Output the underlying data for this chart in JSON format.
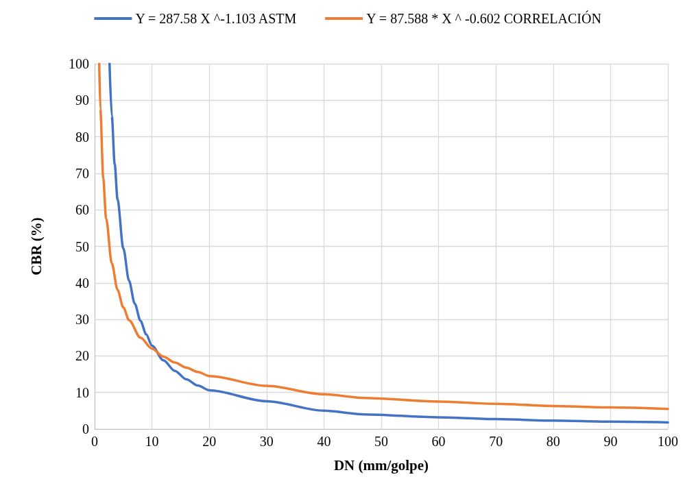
{
  "chart_data": {
    "type": "line",
    "xlabel": "DN (mm/golpe)",
    "ylabel": "CBR (%)",
    "xlim": [
      0,
      100
    ],
    "xticks": [
      0,
      10,
      20,
      30,
      40,
      50,
      60,
      70,
      80,
      90,
      100
    ],
    "ylim": [
      0,
      100
    ],
    "yticks": [
      0,
      10,
      20,
      30,
      40,
      50,
      60,
      70,
      80,
      90,
      100
    ],
    "grid": true,
    "legend": "top",
    "marker": "none",
    "line_style": "solid",
    "series": [
      {
        "name": "Y = 287.58 X ^-1.103 ASTM",
        "color": "#4472c4",
        "x": [
          2.6,
          3,
          3.5,
          4,
          5,
          6,
          7,
          8,
          9,
          10,
          12,
          14,
          16,
          18,
          20,
          30,
          40,
          47,
          60,
          70,
          80,
          90,
          100
        ],
        "values": [
          100,
          85.6,
          72.5,
          62.8,
          49.5,
          40.6,
          34.3,
          29.6,
          25.9,
          22.8,
          18.8,
          15.9,
          13.6,
          11.9,
          10.6,
          7.6,
          5.0,
          4.0,
          3.2,
          2.7,
          2.3,
          2.0,
          1.8
        ]
      },
      {
        "name": "Y = 87.588 * X ^ -0.602 CORRELACIÓN",
        "color": "#ed7d31",
        "x": [
          0.8,
          1,
          1.5,
          2,
          3,
          4,
          5,
          6,
          8,
          10,
          12,
          14,
          16,
          18,
          20,
          30,
          40,
          47,
          60,
          70,
          80,
          90,
          100
        ],
        "values": [
          100,
          87.6,
          68.6,
          57.7,
          45.3,
          38.1,
          33.3,
          29.8,
          25.0,
          22.0,
          19.8,
          18.2,
          16.8,
          15.6,
          14.5,
          11.8,
          9.5,
          8.5,
          7.5,
          6.9,
          6.3,
          5.9,
          5.5
        ]
      }
    ]
  }
}
